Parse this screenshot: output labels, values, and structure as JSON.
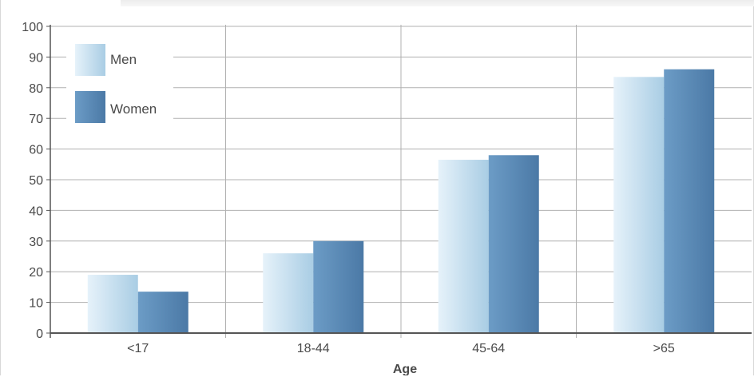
{
  "chart_data": {
    "type": "bar",
    "title": "",
    "xlabel": "Age",
    "ylabel": "",
    "ylim": [
      0,
      100
    ],
    "yticks": [
      0,
      10,
      20,
      30,
      40,
      50,
      60,
      70,
      80,
      90,
      100
    ],
    "categories": [
      "<17",
      "18-44",
      "45-64",
      ">65"
    ],
    "series": [
      {
        "name": "Men",
        "values": [
          19,
          26,
          56.5,
          83.5
        ]
      },
      {
        "name": "Women",
        "values": [
          13.5,
          30,
          58,
          86
        ]
      }
    ],
    "grid": true,
    "legend_position": "top-left",
    "colors": {
      "men_light": "#e6f2fa",
      "men_dark": "#a9cde4",
      "women_light": "#6c9cc6",
      "women_dark": "#4b79a6",
      "grid": "#b0b0b0",
      "axis": "#555555"
    }
  }
}
